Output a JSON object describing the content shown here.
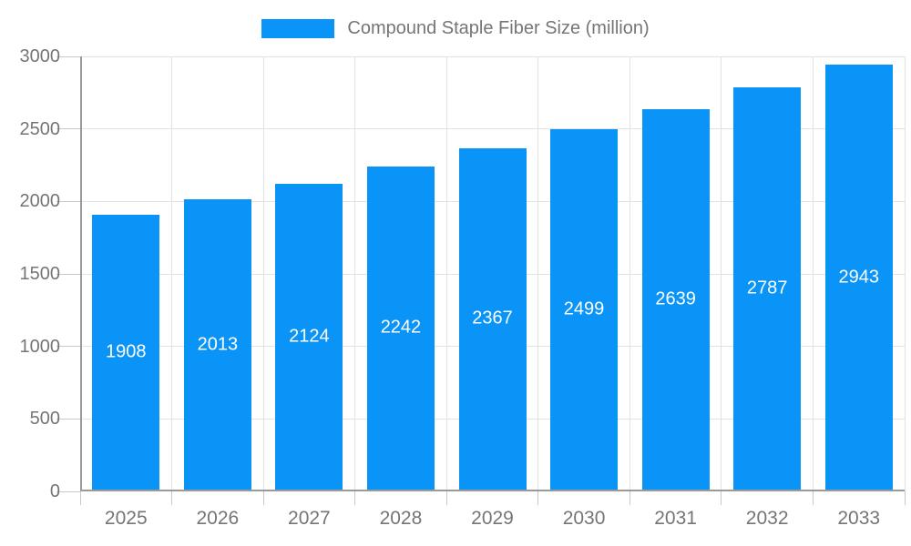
{
  "chart_data": {
    "type": "bar",
    "title": "",
    "legend_position": "top",
    "series": [
      {
        "name": "Compound Staple Fiber Size (million)",
        "values": [
          1908,
          2013,
          2124,
          2242,
          2367,
          2499,
          2639,
          2787,
          2943
        ]
      }
    ],
    "categories": [
      "2025",
      "2026",
      "2027",
      "2028",
      "2029",
      "2030",
      "2031",
      "2032",
      "2033"
    ],
    "xlabel": "",
    "ylabel": "",
    "ylim": [
      0,
      3000
    ],
    "yticks": [
      0,
      500,
      1000,
      1500,
      2000,
      2500,
      3000
    ],
    "grid": true,
    "value_labels": "inside-center",
    "colors": {
      "bar": "#0a94f8",
      "grid": "#e2e2e2",
      "axis": "#9a9a9a",
      "tick": "#c9c9c9",
      "axis_text": "#757575",
      "legend_text": "#757575",
      "value_text": "#ffffff",
      "background": "#ffffff"
    }
  }
}
